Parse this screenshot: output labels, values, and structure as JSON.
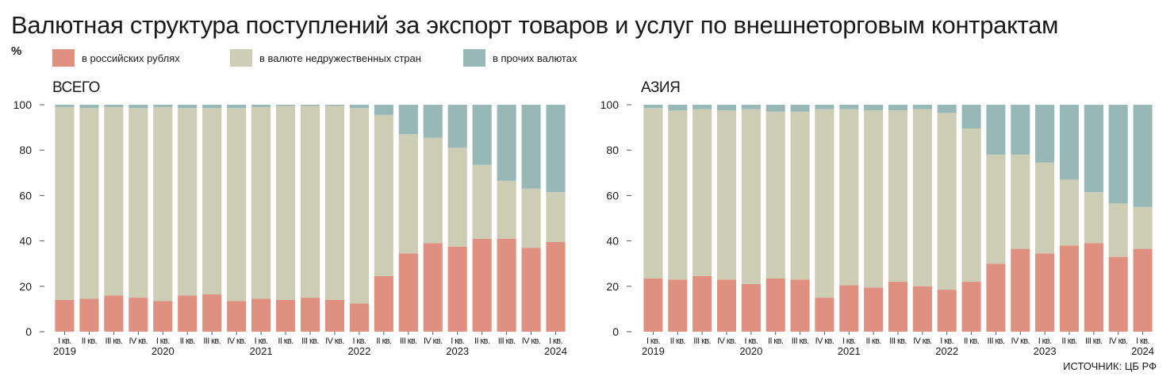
{
  "title": "Валютная структура поступлений за экспорт товаров и услуг по внешнеторговым контрактам",
  "unit": "%",
  "legend": [
    {
      "label": "в российских рублях",
      "color": "#df9080"
    },
    {
      "label": "в валюте недружественных стран",
      "color": "#cccdb4"
    },
    {
      "label": "в прочих валютах",
      "color": "#98b8b8"
    }
  ],
  "source": "ИСТОЧНИК: ЦБ РФ",
  "chart_data": [
    {
      "type": "bar",
      "stacked": true,
      "title": "ВСЕГО",
      "ylim": [
        0,
        100
      ],
      "yticks": [
        0,
        20,
        40,
        60,
        80,
        100
      ],
      "categories": [
        "I кв.",
        "II кв.",
        "III кв.",
        "IV кв.",
        "I кв.",
        "II кв.",
        "III кв.",
        "IV кв.",
        "I кв.",
        "II кв.",
        "III кв.",
        "IV кв.",
        "I кв.",
        "II кв.",
        "III кв.",
        "IV кв.",
        "I кв.",
        "II кв.",
        "III кв.",
        "IV кв.",
        "I кв."
      ],
      "years": [
        {
          "label": "2019",
          "index": 0
        },
        {
          "label": "2020",
          "index": 4
        },
        {
          "label": "2021",
          "index": 8
        },
        {
          "label": "2022",
          "index": 12
        },
        {
          "label": "2023",
          "index": 16
        },
        {
          "label": "2024",
          "index": 20
        }
      ],
      "series": [
        {
          "name": "в российских рублях",
          "color": "#df9080",
          "values": [
            14,
            14.5,
            16,
            15,
            13.5,
            16,
            16.5,
            13.5,
            14.5,
            14,
            15,
            14,
            12.5,
            24.5,
            34.5,
            39,
            37.5,
            41,
            41,
            37,
            39.5
          ]
        },
        {
          "name": "в валюте недружественных стран",
          "color": "#cccdb4",
          "values": [
            85,
            84,
            83,
            83.5,
            85.5,
            82.5,
            82,
            85,
            84.5,
            85.5,
            84.5,
            85.5,
            86,
            71,
            52.5,
            46.5,
            43.5,
            32.5,
            25.5,
            26,
            22
          ]
        },
        {
          "name": "в прочих валютах",
          "color": "#98b8b8",
          "values": [
            1,
            1.5,
            1,
            1.5,
            1,
            1.5,
            1.5,
            1.5,
            1,
            0.5,
            0.5,
            0.5,
            1.5,
            4.5,
            13,
            14.5,
            19,
            26.5,
            33.5,
            37,
            38.5
          ]
        }
      ]
    },
    {
      "type": "bar",
      "stacked": true,
      "title": "АЗИЯ",
      "ylim": [
        0,
        100
      ],
      "yticks": [
        0,
        20,
        40,
        60,
        80,
        100
      ],
      "categories": [
        "I кв.",
        "II кв.",
        "III кв.",
        "IV кв.",
        "I кв.",
        "II кв.",
        "III кв.",
        "IV кв.",
        "I кв.",
        "II кв.",
        "III кв.",
        "IV кв.",
        "I кв.",
        "II кв.",
        "III кв.",
        "IV кв.",
        "I кв.",
        "II кв.",
        "III кв.",
        "IV кв.",
        "I кв."
      ],
      "years": [
        {
          "label": "2019",
          "index": 0
        },
        {
          "label": "2020",
          "index": 4
        },
        {
          "label": "2021",
          "index": 8
        },
        {
          "label": "2022",
          "index": 12
        },
        {
          "label": "2023",
          "index": 16
        },
        {
          "label": "2024",
          "index": 20
        }
      ],
      "series": [
        {
          "name": "в российских рублях",
          "color": "#df9080",
          "values": [
            23.5,
            23,
            24.5,
            23,
            21,
            23.5,
            23,
            15,
            20.5,
            19.5,
            22,
            20,
            18.5,
            22,
            30,
            36.5,
            34.5,
            38,
            39,
            33,
            36.5
          ]
        },
        {
          "name": "в валюте недружественных стран",
          "color": "#cccdb4",
          "values": [
            75,
            74.5,
            73.5,
            74.5,
            77,
            73.5,
            74,
            83,
            77.5,
            78,
            75.5,
            78,
            78,
            67.5,
            48,
            41.5,
            40,
            29,
            22.5,
            23.5,
            18.5
          ]
        },
        {
          "name": "в прочих валютах",
          "color": "#98b8b8",
          "values": [
            1.5,
            2.5,
            2,
            2.5,
            2,
            3,
            3,
            2,
            2,
            2.5,
            2.5,
            2,
            3.5,
            10.5,
            22,
            22,
            25.5,
            33,
            38.5,
            43.5,
            45
          ]
        }
      ]
    }
  ]
}
